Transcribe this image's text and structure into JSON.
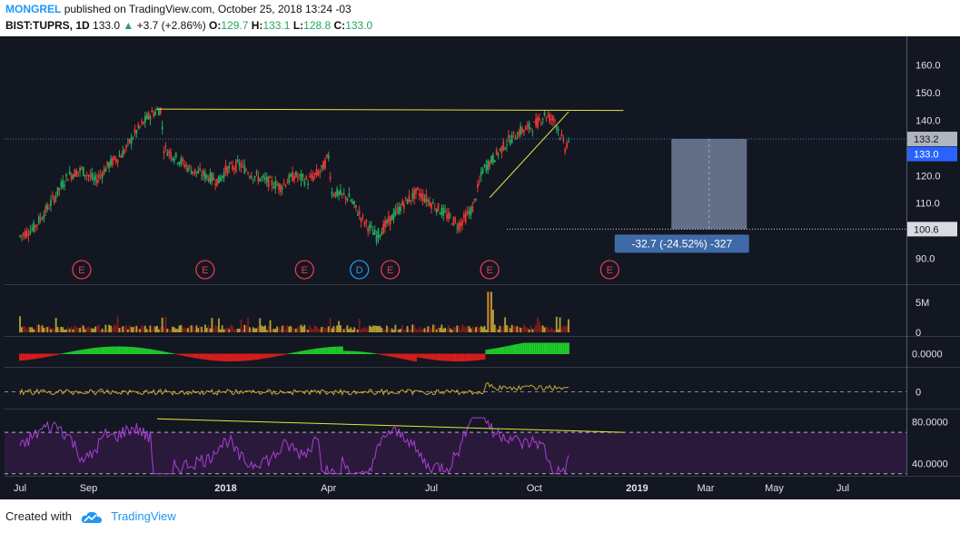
{
  "header": {
    "author": "MONGREL",
    "published_text": "published on TradingView.com, October 25, 2018 13:24 -03",
    "symbol": "BIST:TUPRS, 1D",
    "last": "133.0",
    "change": "+3.7 (+2.86%)",
    "o_label": "O:",
    "o_value": "129.7",
    "h_label": "H:",
    "h_value": "133.1",
    "l_label": "L:",
    "l_value": "128.8",
    "c_label": "C:",
    "c_value": "133.0"
  },
  "footer": {
    "created_with": "Created with",
    "brand": "TradingView"
  },
  "colors": {
    "background": "#131722",
    "up": "#26a65b",
    "down": "#e53935",
    "volume_up": "#b5a331",
    "volume_down": "#7d1c1c",
    "trendline": "#e6e63c",
    "rsi": "#a83fd6",
    "osc_up": "#1fd12b",
    "osc_down": "#e01d1d",
    "measure_box": "#7d8da8",
    "measure_label": "#3f6aa8",
    "price_line": "#3a7bd5",
    "brand": "#2196f3"
  },
  "chart_data": {
    "type": "candlestick",
    "x_ticks": [
      "Jul",
      "Sep",
      "2018",
      "Apr",
      "Jul",
      "Oct",
      "2019",
      "Mar",
      "May",
      "Jul"
    ],
    "x_tick_months": [
      0,
      2,
      6,
      9,
      12,
      15,
      18,
      20,
      22,
      24
    ],
    "price_axis": {
      "ticks": [
        "160.0",
        "150.0",
        "140.0",
        "120.0",
        "110.0",
        "90.0"
      ],
      "tick_values": [
        160,
        150,
        140,
        120,
        110,
        90
      ],
      "range": [
        82,
        169
      ]
    },
    "price_labels": [
      {
        "text": "133.2",
        "value": 133.2
      },
      {
        "text": "133.0",
        "value": 133.0
      },
      {
        "text": "100.6",
        "value": 100.6
      }
    ],
    "last_price": 133.0,
    "price_path": [
      [
        0,
        98
      ],
      [
        0.4,
        101
      ],
      [
        0.8,
        108
      ],
      [
        1.4,
        120
      ],
      [
        1.8,
        122
      ],
      [
        2.2,
        118
      ],
      [
        2.6,
        124
      ],
      [
        3.0,
        128
      ],
      [
        3.4,
        136
      ],
      [
        3.8,
        142
      ],
      [
        4.1,
        144
      ],
      [
        4.2,
        130
      ],
      [
        4.6,
        126
      ],
      [
        5.0,
        122
      ],
      [
        5.4,
        120
      ],
      [
        5.8,
        118
      ],
      [
        6.0,
        122
      ],
      [
        6.4,
        124
      ],
      [
        6.8,
        120
      ],
      [
        7.2,
        118
      ],
      [
        7.6,
        116
      ],
      [
        8.0,
        120
      ],
      [
        8.4,
        118
      ],
      [
        8.8,
        122
      ],
      [
        9.0,
        127
      ],
      [
        9.1,
        114
      ],
      [
        9.6,
        112
      ],
      [
        10.0,
        104
      ],
      [
        10.4,
        98
      ],
      [
        10.8,
        104
      ],
      [
        11.2,
        110
      ],
      [
        11.6,
        114
      ],
      [
        12.0,
        110
      ],
      [
        12.4,
        106
      ],
      [
        12.8,
        102
      ],
      [
        13.2,
        108
      ],
      [
        13.5,
        122
      ],
      [
        13.8,
        126
      ],
      [
        14.2,
        132
      ],
      [
        14.6,
        136
      ],
      [
        15.0,
        138
      ],
      [
        15.3,
        142
      ],
      [
        15.6,
        140
      ],
      [
        15.9,
        130
      ],
      [
        16.0,
        133
      ]
    ],
    "events": [
      {
        "label": "E",
        "month": 1.8
      },
      {
        "label": "E",
        "month": 5.4
      },
      {
        "label": "E",
        "month": 8.3
      },
      {
        "label": "D",
        "month": 9.9
      },
      {
        "label": "E",
        "month": 10.8
      },
      {
        "label": "E",
        "month": 13.7
      },
      {
        "label": "E",
        "month": 17.2
      }
    ],
    "trendlines": [
      {
        "from": [
          4.0,
          144
        ],
        "to": [
          17.6,
          143.5
        ]
      },
      {
        "from": [
          13.7,
          112
        ],
        "to": [
          16.0,
          143
        ]
      }
    ],
    "measure": {
      "from_month": 19.0,
      "to_month": 21.2,
      "top": 133.2,
      "bottom": 100.6,
      "label": "-32.7 (-24.52%) -327"
    },
    "volume_axis": {
      "ticks": [
        "5M",
        "0"
      ],
      "tick_values": [
        5,
        0
      ],
      "max": 7
    },
    "oscillator_axis": {
      "ticks": [
        "0.0000"
      ]
    },
    "momentum_axis": {
      "ticks": [
        "0"
      ]
    },
    "rsi_axis": {
      "ticks": [
        "80.0000",
        "40.0000"
      ],
      "tick_values": [
        80,
        40
      ],
      "range": [
        28,
        92
      ],
      "bands": [
        70,
        30
      ]
    }
  }
}
